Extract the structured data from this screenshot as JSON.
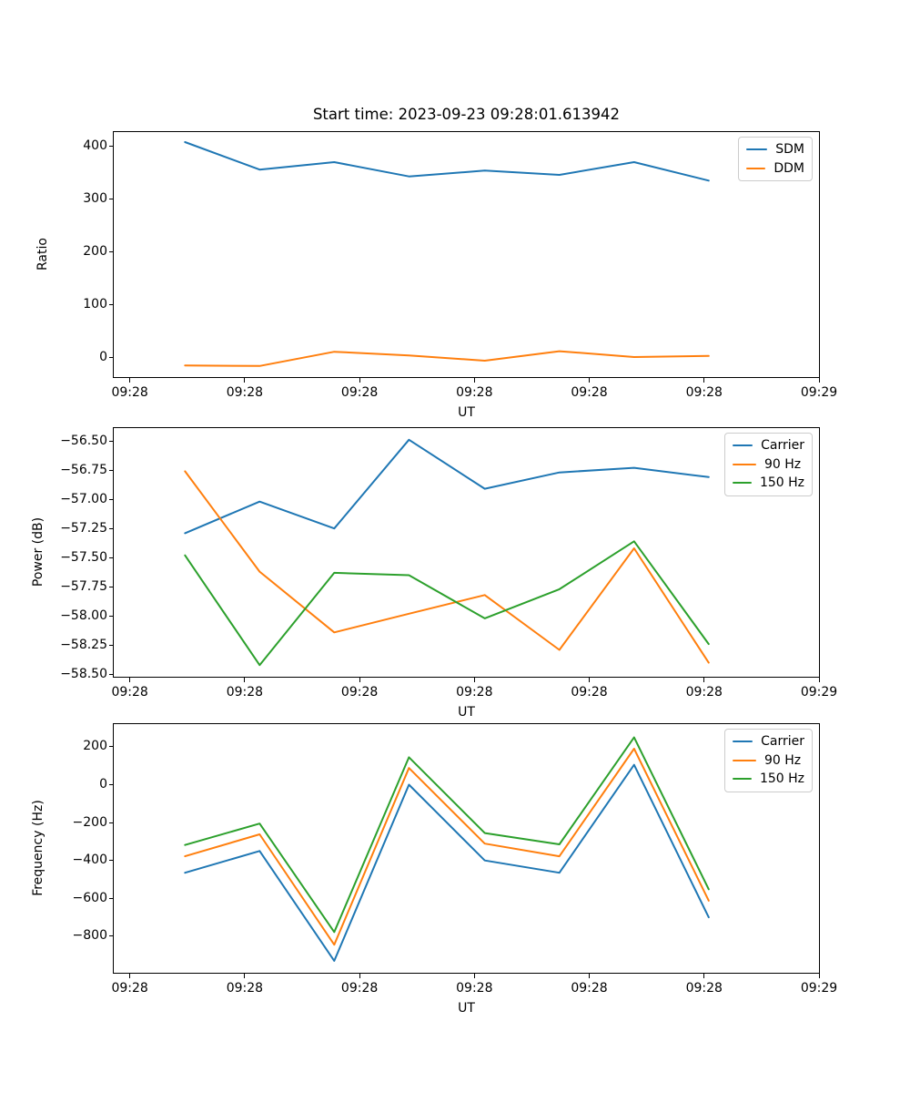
{
  "figure_title": "Start time: 2023-09-23 09:28:01.613942",
  "colors": {
    "blue": "#1f77b4",
    "orange": "#ff7f0e",
    "green": "#2ca02c"
  },
  "chart_data": [
    {
      "type": "line",
      "title": "Start time: 2023-09-23 09:28:01.613942",
      "xlabel": "UT",
      "ylabel": "Ratio",
      "legend_position": "upper right",
      "grid": false,
      "x_ticklabels": [
        "09:28",
        "09:28",
        "09:28",
        "09:28",
        "09:28",
        "09:28",
        "09:29"
      ],
      "xtick_sec": [
        0,
        10,
        20,
        30,
        40,
        50,
        60
      ],
      "xlim_sec": [
        -1.4,
        60
      ],
      "x_offsets_sec": [
        4.8,
        11.3,
        17.8,
        24.3,
        30.9,
        37.4,
        43.9,
        50.4
      ],
      "ytick_values": [
        0,
        100,
        200,
        300,
        400
      ],
      "ytick_labels": [
        "0",
        "100",
        "200",
        "300",
        "400"
      ],
      "ylim": [
        -37,
        427
      ],
      "series": [
        {
          "name": "SDM",
          "color": "#1f77b4",
          "values": [
            408,
            356,
            370,
            343,
            354,
            346,
            370,
            335
          ]
        },
        {
          "name": "DDM",
          "color": "#ff7f0e",
          "values": [
            -15,
            -16,
            11,
            4,
            -6,
            12,
            1,
            3
          ]
        }
      ]
    },
    {
      "type": "line",
      "title": "",
      "xlabel": "UT",
      "ylabel": "Power (dB)",
      "legend_position": "upper right",
      "grid": false,
      "x_ticklabels": [
        "09:28",
        "09:28",
        "09:28",
        "09:28",
        "09:28",
        "09:28",
        "09:29"
      ],
      "xtick_sec": [
        0,
        10,
        20,
        30,
        40,
        50,
        60
      ],
      "xlim_sec": [
        -1.4,
        60
      ],
      "x_offsets_sec": [
        4.8,
        11.3,
        17.8,
        24.3,
        30.9,
        37.4,
        43.9,
        50.4
      ],
      "ytick_values": [
        -56.5,
        -56.75,
        -57.0,
        -57.25,
        -57.5,
        -57.75,
        -58.0,
        -58.25,
        -58.5
      ],
      "ytick_labels": [
        "−56.50",
        "−56.75",
        "−57.00",
        "−57.25",
        "−57.50",
        "−57.75",
        "−58.00",
        "−58.25",
        "−58.50"
      ],
      "ylim": [
        -58.52,
        -56.39
      ],
      "series": [
        {
          "name": "Carrier",
          "color": "#1f77b4",
          "values": [
            -57.29,
            -57.02,
            -57.25,
            -56.49,
            -56.91,
            -56.77,
            -56.73,
            -56.81
          ]
        },
        {
          "name": "90 Hz",
          "color": "#ff7f0e",
          "values": [
            -56.76,
            -57.62,
            -58.14,
            -57.98,
            -57.82,
            -58.29,
            -57.42,
            -58.4
          ]
        },
        {
          "name": "150 Hz",
          "color": "#2ca02c",
          "values": [
            -57.48,
            -58.42,
            -57.63,
            -57.65,
            -58.02,
            -57.77,
            -57.36,
            -58.24
          ]
        }
      ]
    },
    {
      "type": "line",
      "title": "",
      "xlabel": "UT",
      "ylabel": "Frequency (Hz)",
      "legend_position": "upper right",
      "grid": false,
      "x_ticklabels": [
        "09:28",
        "09:28",
        "09:28",
        "09:28",
        "09:28",
        "09:28",
        "09:29"
      ],
      "xtick_sec": [
        0,
        10,
        20,
        30,
        40,
        50,
        60
      ],
      "xlim_sec": [
        -1.4,
        60
      ],
      "x_offsets_sec": [
        4.8,
        11.3,
        17.8,
        24.3,
        30.9,
        37.4,
        43.9,
        50.4
      ],
      "ytick_values": [
        200,
        0,
        -200,
        -400,
        -600,
        -800
      ],
      "ytick_labels": [
        "200",
        "0",
        "−200",
        "−400",
        "−600",
        "−800"
      ],
      "ylim": [
        -993,
        320
      ],
      "series": [
        {
          "name": "Carrier",
          "color": "#1f77b4",
          "values": [
            -465,
            -350,
            -930,
            0,
            -400,
            -465,
            105,
            -700
          ]
        },
        {
          "name": "90 Hz",
          "color": "#ff7f0e",
          "values": [
            -378,
            -262,
            -845,
            88,
            -311,
            -378,
            190,
            -612
          ]
        },
        {
          "name": "150 Hz",
          "color": "#2ca02c",
          "values": [
            -318,
            -205,
            -778,
            145,
            -255,
            -315,
            250,
            -552
          ]
        }
      ]
    }
  ]
}
